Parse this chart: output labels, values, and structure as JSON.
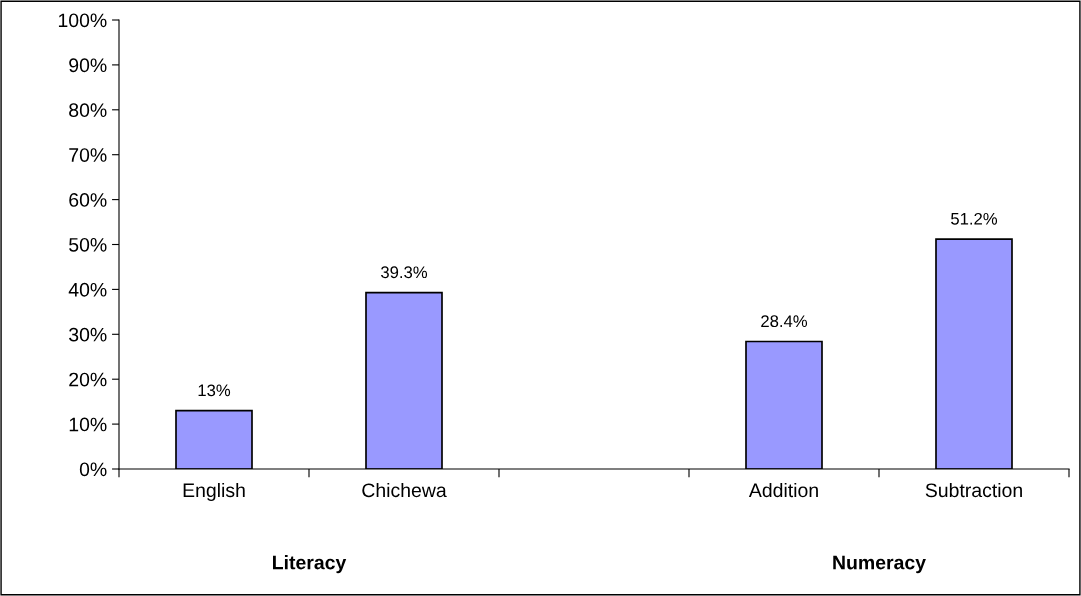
{
  "chart_data": {
    "type": "bar",
    "categories": [
      "English",
      "Chichewa",
      null,
      "Addition",
      "Subtraction"
    ],
    "values": [
      13,
      39.3,
      null,
      28.4,
      51.2
    ],
    "value_labels": [
      "13%",
      "39.3%",
      null,
      "28.4%",
      "51.2%"
    ],
    "color": "#9999ff",
    "ylim": [
      0,
      100
    ],
    "yticks": [
      {
        "value": 0,
        "label": "0%"
      },
      {
        "value": 10,
        "label": "10%"
      },
      {
        "value": 20,
        "label": "20%"
      },
      {
        "value": 30,
        "label": "30%"
      },
      {
        "value": 40,
        "label": "40%"
      },
      {
        "value": 50,
        "label": "50%"
      },
      {
        "value": 60,
        "label": "60%"
      },
      {
        "value": 70,
        "label": "70%"
      },
      {
        "value": 80,
        "label": "80%"
      },
      {
        "value": 90,
        "label": "90%"
      },
      {
        "value": 100,
        "label": "100%"
      }
    ],
    "annotations": [
      "Literacy",
      "Numeracy"
    ],
    "grid": false,
    "legend": false
  }
}
